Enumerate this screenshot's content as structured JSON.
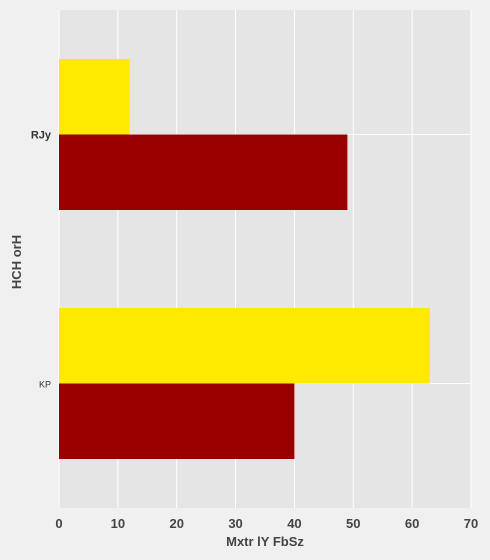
{
  "chart_data": {
    "type": "bar",
    "orientation": "horizontal",
    "categories": [
      "RJy",
      "KP"
    ],
    "series": [
      {
        "color": "#ffe900",
        "values": [
          12,
          63
        ]
      },
      {
        "color": "#990000",
        "values": [
          49,
          40
        ]
      }
    ],
    "xlabel": "Mxtr lY FbSz",
    "ylabel": "HCH orH",
    "xlim": [
      0,
      70
    ],
    "xticks": [
      "0",
      "10",
      "20",
      "30",
      "40",
      "50",
      "60",
      "70"
    ],
    "grid": true,
    "background": "#e5e5e5"
  }
}
